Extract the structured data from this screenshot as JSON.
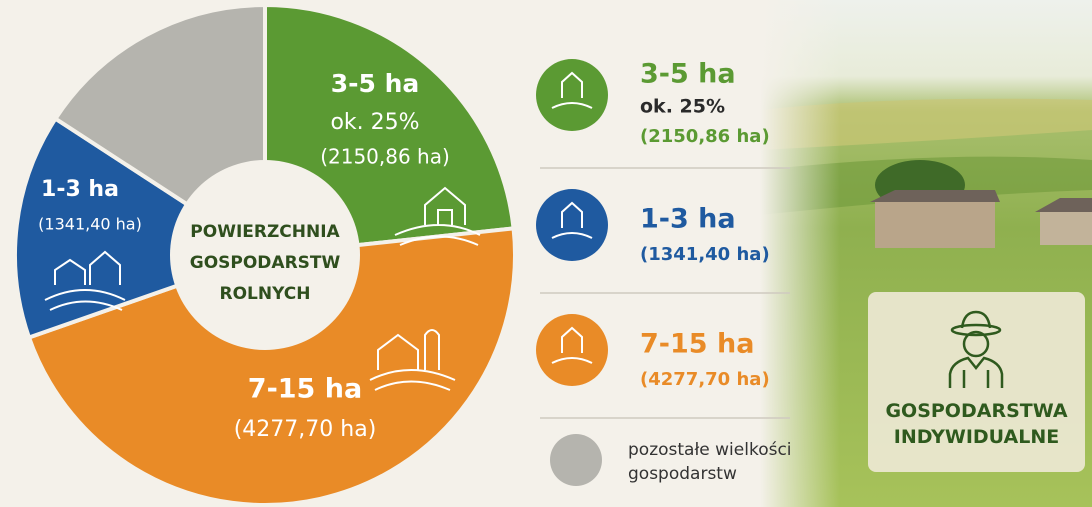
{
  "chart_data": {
    "type": "pie",
    "center_label": [
      "POWIERZCHNIA",
      "GOSPODARSTW",
      "ROLNYCH"
    ],
    "slices": [
      {
        "name": "3-5 ha",
        "value": 2150.86,
        "value_label": "(2150,86 ha)",
        "note": "ok. 25%",
        "color": "#5b9a33"
      },
      {
        "name": "7-15 ha",
        "value": 4277.7,
        "value_label": "(4277,70 ha)",
        "color": "#e98b27"
      },
      {
        "name": "1-3 ha",
        "value": 1341.4,
        "value_label": "(1341,40 ha)",
        "color": "#1f5aa0"
      },
      {
        "name": "pozostałe wielkości gospodarstw",
        "value": 1460,
        "color": "#b5b4ae"
      }
    ],
    "badge": "GOSPODARSTWA INDYWIDUALNE"
  }
}
